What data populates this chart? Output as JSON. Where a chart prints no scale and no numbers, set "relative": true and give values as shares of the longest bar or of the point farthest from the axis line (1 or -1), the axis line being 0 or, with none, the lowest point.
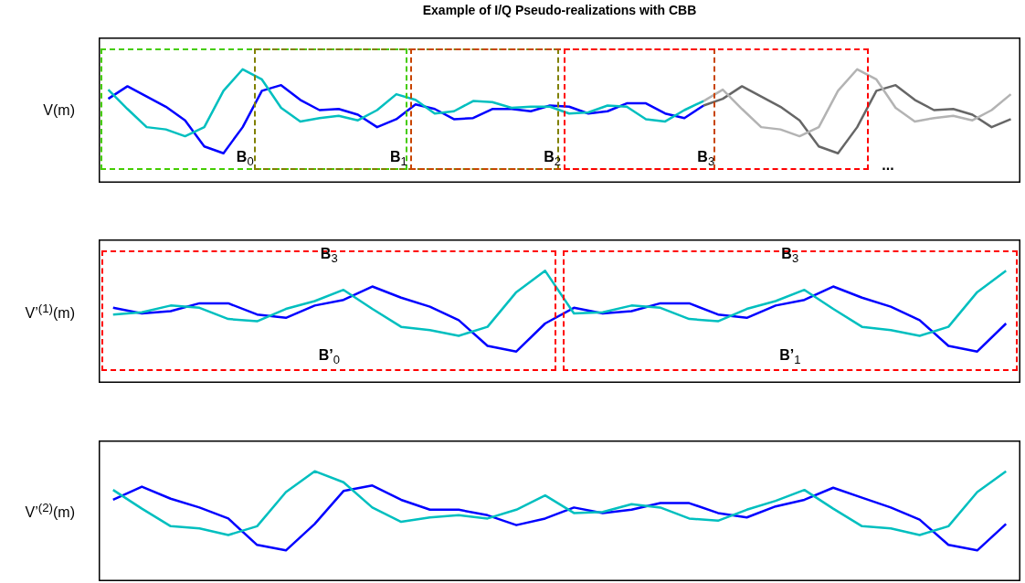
{
  "chart_data": [
    {
      "type": "line",
      "title": "Example of I/Q Pseudo-realizations with CBB",
      "ylabel": "V(m)",
      "relative": true,
      "tick_labels": false,
      "categories": [
        null,
        null,
        null,
        null,
        null,
        null,
        null,
        null,
        null,
        null,
        null,
        null,
        null,
        null,
        null,
        null,
        null,
        null,
        null,
        null,
        null,
        null,
        null,
        null,
        null,
        null,
        null,
        null,
        null,
        null,
        null,
        null,
        null,
        null,
        null,
        null,
        null,
        null,
        null,
        null,
        null,
        null,
        null,
        null,
        null,
        null,
        null,
        null
      ],
      "series": [
        {
          "color": "#00bfbf",
          "values": [
            0.82,
            0.65,
            0.49,
            0.47,
            0.41,
            0.49,
            0.81,
            1.0,
            0.91,
            0.66,
            0.54,
            0.57,
            0.59,
            0.55,
            0.64,
            0.78,
            0.73,
            0.61,
            0.63,
            0.72,
            0.71,
            0.66,
            0.67,
            0.67,
            0.61,
            0.62,
            0.68,
            0.67,
            0.56,
            0.54,
            0.64,
            0.72,
            null,
            null,
            null,
            null,
            null,
            null,
            null,
            null,
            null,
            null,
            null,
            null,
            null,
            null,
            null,
            null
          ]
        },
        {
          "color": "#0000ff",
          "values": [
            0.74,
            0.85,
            0.76,
            0.67,
            0.55,
            0.32,
            0.26,
            0.49,
            0.81,
            0.86,
            0.73,
            0.64,
            0.65,
            0.6,
            0.49,
            0.56,
            0.69,
            0.65,
            0.56,
            0.57,
            0.65,
            0.65,
            0.63,
            0.68,
            0.67,
            0.61,
            0.63,
            0.7,
            0.7,
            0.61,
            0.57,
            0.68,
            null,
            null,
            null,
            null,
            null,
            null,
            null,
            null,
            null,
            null,
            null,
            null,
            null,
            null,
            null,
            null
          ]
        },
        {
          "color": "#b3b3b3",
          "values": [
            null,
            null,
            null,
            null,
            null,
            null,
            null,
            null,
            null,
            null,
            null,
            null,
            null,
            null,
            null,
            null,
            null,
            null,
            null,
            null,
            null,
            null,
            null,
            null,
            null,
            null,
            null,
            null,
            null,
            null,
            null,
            0.72,
            0.82,
            0.65,
            0.49,
            0.47,
            0.41,
            0.49,
            0.81,
            1.0,
            0.91,
            0.66,
            0.54,
            0.57,
            0.59,
            0.55,
            0.64,
            0.78
          ]
        },
        {
          "color": "#666666",
          "values": [
            null,
            null,
            null,
            null,
            null,
            null,
            null,
            null,
            null,
            null,
            null,
            null,
            null,
            null,
            null,
            null,
            null,
            null,
            null,
            null,
            null,
            null,
            null,
            null,
            null,
            null,
            null,
            null,
            null,
            null,
            null,
            0.68,
            0.74,
            0.85,
            0.76,
            0.67,
            0.55,
            0.32,
            0.26,
            0.49,
            0.81,
            0.86,
            0.73,
            0.64,
            0.65,
            0.6,
            0.49,
            0.56
          ]
        }
      ],
      "annotations": [
        "B$_{0}$",
        "B$_{1}$",
        "B$_{2}$",
        "B$_{3}$",
        "..."
      ]
    },
    {
      "type": "line",
      "ylabel": "V’$^{(1)}$(m)",
      "relative": true,
      "tick_labels": false,
      "categories": [
        null,
        null,
        null,
        null,
        null,
        null,
        null,
        null,
        null,
        null,
        null,
        null,
        null,
        null,
        null,
        null,
        null,
        null,
        null,
        null,
        null,
        null,
        null,
        null,
        null,
        null,
        null,
        null,
        null,
        null,
        null,
        null
      ],
      "series": [
        {
          "color": "#00bfbf",
          "values": [
            0.61,
            0.63,
            0.69,
            0.67,
            0.57,
            0.55,
            0.66,
            0.73,
            0.83,
            0.66,
            0.5,
            0.47,
            0.42,
            0.5,
            0.81,
            1.0,
            0.62,
            0.63,
            0.69,
            0.67,
            0.57,
            0.55,
            0.66,
            0.73,
            0.83,
            0.66,
            0.5,
            0.47,
            0.42,
            0.5,
            0.81,
            1.0
          ]
        },
        {
          "color": "#0000ff",
          "values": [
            0.67,
            0.62,
            0.64,
            0.71,
            0.71,
            0.61,
            0.58,
            0.69,
            0.74,
            0.86,
            0.76,
            0.68,
            0.56,
            0.33,
            0.28,
            0.53,
            0.67,
            0.62,
            0.64,
            0.71,
            0.71,
            0.61,
            0.58,
            0.69,
            0.74,
            0.86,
            0.76,
            0.68,
            0.56,
            0.33,
            0.28,
            0.53
          ]
        }
      ],
      "annotations": [
        "B$_{3}$",
        "B$_{3}$",
        "B’$_{0}$",
        "B’$_{1}$"
      ]
    },
    {
      "type": "line",
      "ylabel": "V’$^{(2)}$(m)",
      "relative": true,
      "tick_labels": false,
      "categories": [
        null,
        null,
        null,
        null,
        null,
        null,
        null,
        null,
        null,
        null,
        null,
        null,
        null,
        null,
        null,
        null,
        null,
        null,
        null,
        null,
        null,
        null,
        null,
        null,
        null,
        null,
        null,
        null,
        null,
        null,
        null,
        null
      ],
      "series": [
        {
          "color": "#00bfbf",
          "values": [
            0.83,
            0.66,
            0.5,
            0.48,
            0.42,
            0.5,
            0.81,
            1.0,
            0.9,
            0.67,
            0.54,
            0.58,
            0.6,
            0.57,
            0.65,
            0.78,
            0.62,
            0.63,
            0.7,
            0.67,
            0.57,
            0.55,
            0.65,
            0.73,
            0.83,
            0.66,
            0.5,
            0.48,
            0.42,
            0.5,
            0.81,
            1.0
          ]
        },
        {
          "color": "#0000ff",
          "values": [
            0.74,
            0.86,
            0.75,
            0.67,
            0.57,
            0.33,
            0.28,
            0.52,
            0.82,
            0.87,
            0.74,
            0.65,
            0.65,
            0.6,
            0.51,
            0.57,
            0.67,
            0.62,
            0.65,
            0.71,
            0.71,
            0.62,
            0.58,
            0.68,
            0.74,
            0.85,
            0.76,
            0.67,
            0.56,
            0.33,
            0.28,
            0.52
          ]
        }
      ]
    }
  ]
}
